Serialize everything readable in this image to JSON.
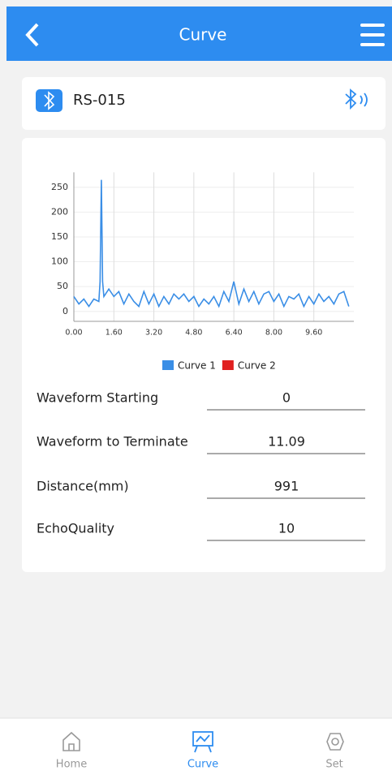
{
  "header": {
    "title": "Curve"
  },
  "device": {
    "name": "RS-015"
  },
  "chart": {
    "type": "line",
    "x": [
      0,
      0.2,
      0.4,
      0.6,
      0.8,
      1.0,
      1.05,
      1.1,
      1.15,
      1.2,
      1.4,
      1.6,
      1.8,
      2.0,
      2.2,
      2.4,
      2.6,
      2.8,
      3.0,
      3.2,
      3.4,
      3.6,
      3.8,
      4.0,
      4.2,
      4.4,
      4.6,
      4.8,
      5.0,
      5.2,
      5.4,
      5.6,
      5.8,
      6.0,
      6.2,
      6.4,
      6.6,
      6.8,
      7.0,
      7.2,
      7.4,
      7.6,
      7.8,
      8.0,
      8.2,
      8.4,
      8.6,
      8.8,
      9.0,
      9.2,
      9.4,
      9.6,
      9.8,
      10.0,
      10.2,
      10.4,
      10.6,
      10.8,
      11.0
    ],
    "series": [
      {
        "name": "Curve 1",
        "color": "#3a8ee6",
        "values": [
          30,
          15,
          25,
          10,
          25,
          20,
          60,
          265,
          60,
          30,
          45,
          30,
          40,
          15,
          35,
          20,
          10,
          40,
          15,
          35,
          10,
          30,
          15,
          35,
          25,
          35,
          20,
          30,
          10,
          25,
          15,
          30,
          10,
          40,
          20,
          60,
          15,
          45,
          20,
          40,
          15,
          35,
          40,
          20,
          35,
          10,
          30,
          25,
          35,
          10,
          30,
          15,
          35,
          20,
          30,
          15,
          35,
          40,
          10
        ]
      },
      {
        "name": "Curve 2",
        "color": "#e02020",
        "values": [
          null,
          null,
          null,
          null,
          null,
          null,
          null,
          null,
          null,
          null,
          null,
          null,
          null,
          null,
          null,
          null,
          null,
          null,
          null,
          null,
          null,
          null,
          null,
          null,
          null,
          null,
          null,
          null,
          null,
          null,
          null,
          null,
          null,
          null,
          null,
          null,
          null,
          null,
          null,
          null,
          null,
          null,
          null,
          null,
          null,
          null,
          null,
          null,
          null,
          null,
          null,
          null,
          null,
          null,
          null,
          null,
          null,
          null,
          null
        ]
      }
    ],
    "xlim": [
      0,
      11.2
    ],
    "ylim": [
      -20,
      280
    ],
    "xticks": [
      {
        "value": 0,
        "label": "0.00"
      },
      {
        "value": 1.6,
        "label": "1.60"
      },
      {
        "value": 3.2,
        "label": "3.20"
      },
      {
        "value": 4.8,
        "label": "4.80"
      },
      {
        "value": 6.4,
        "label": "6.40"
      },
      {
        "value": 8.0,
        "label": "8.00"
      },
      {
        "value": 9.6,
        "label": "9.60"
      }
    ],
    "yticks": [
      0,
      50,
      100,
      150,
      200,
      250
    ],
    "grid": true
  },
  "fields": [
    {
      "label": "Waveform Starting",
      "value": "0"
    },
    {
      "label": "Waveform to Terminate",
      "value": "11.09"
    },
    {
      "label": "Distance(mm)",
      "value": "991"
    },
    {
      "label": "EchoQuality",
      "value": "10"
    }
  ],
  "nav": [
    {
      "label": "Home"
    },
    {
      "label": "Curve"
    },
    {
      "label": "Set"
    }
  ]
}
